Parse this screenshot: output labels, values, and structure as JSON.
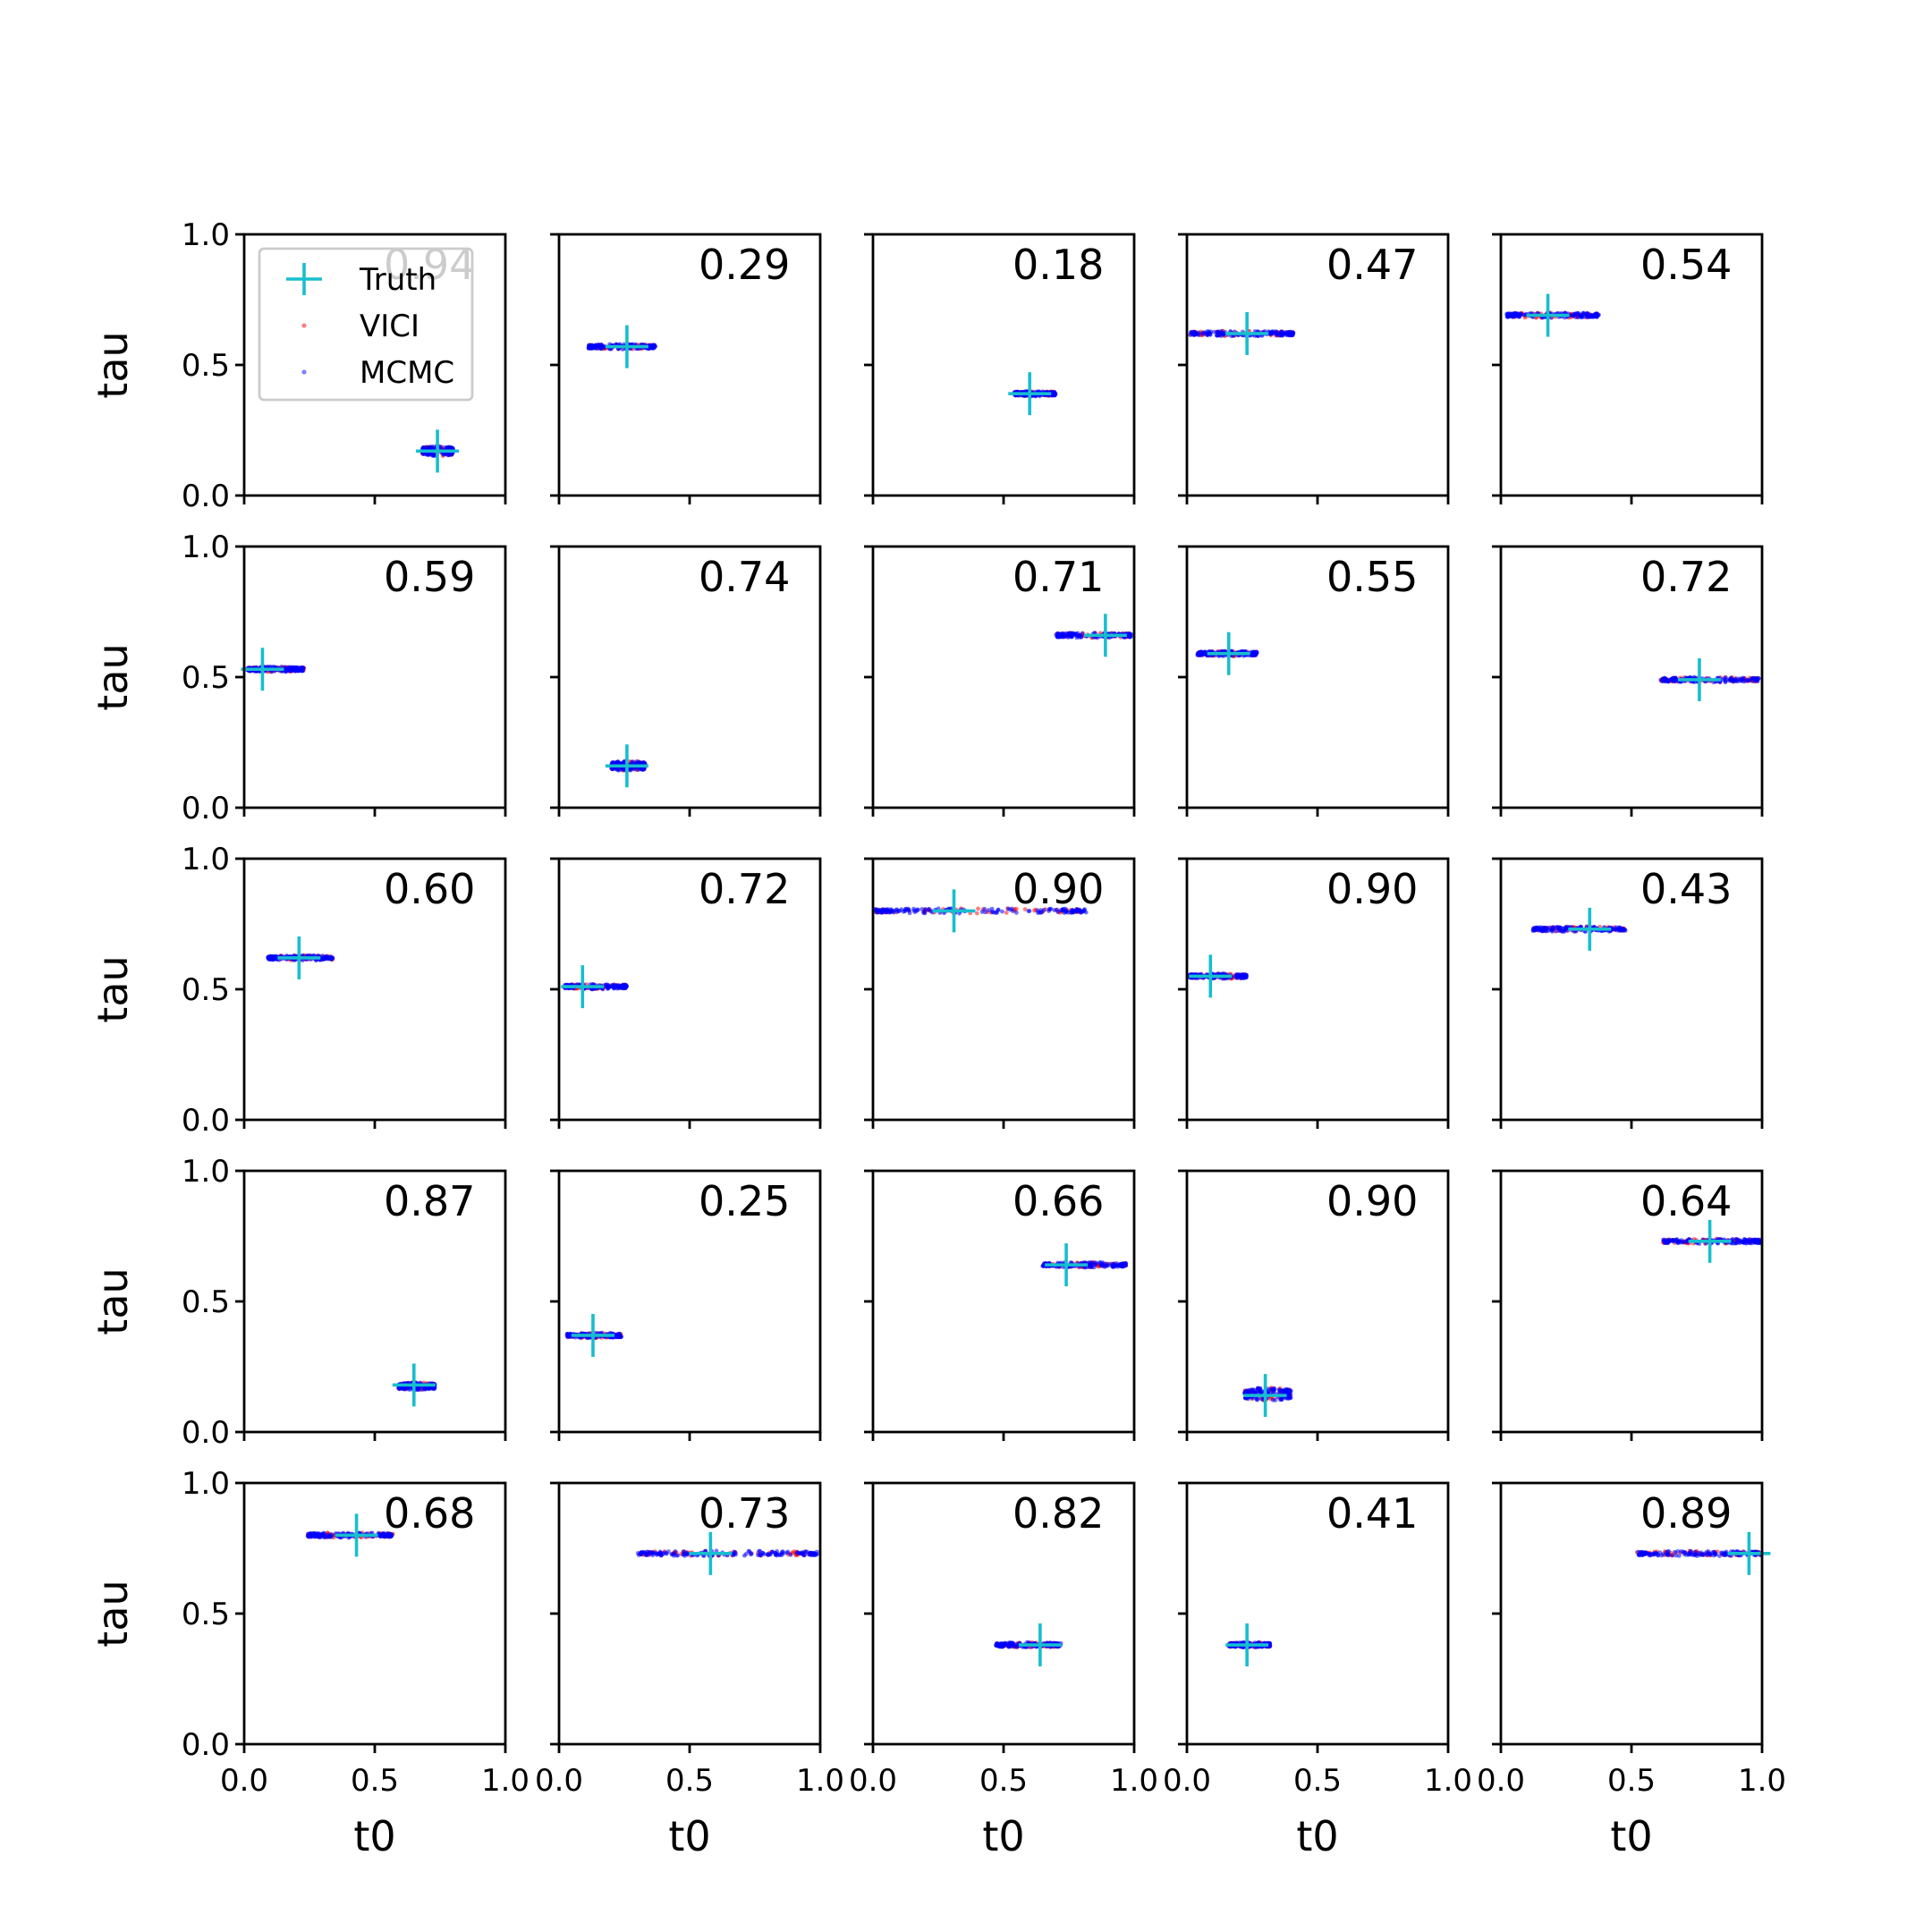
{
  "colors": {
    "truth": "#17becf",
    "vici": "#ff0000",
    "mcmc": "#0000ff",
    "axes": "#000000",
    "background": "#ffffff"
  },
  "chart_data": {
    "type": "scatter",
    "layout": "5x5 grid of subplots",
    "xlabel": "t0",
    "ylabel": "tau",
    "xlim": [
      0.0,
      1.0
    ],
    "ylim": [
      0.0,
      1.0
    ],
    "xticks": [
      "0.0",
      "0.5",
      "1.0"
    ],
    "yticks": [
      "0.0",
      "0.5",
      "1.0"
    ],
    "legend": {
      "placement": "upper-left of first panel",
      "entries": [
        {
          "label": "Truth",
          "marker": "plus"
        },
        {
          "label": "VICI",
          "marker": "dot"
        },
        {
          "label": "MCMC",
          "marker": "dot"
        }
      ]
    },
    "panels": [
      {
        "score": "0.94",
        "truth": [
          0.74,
          0.17
        ],
        "t0_range": [
          0.68,
          0.8
        ],
        "tau_range": [
          0.15,
          0.19
        ]
      },
      {
        "score": "0.29",
        "truth": [
          0.26,
          0.57
        ],
        "t0_range": [
          0.11,
          0.37
        ],
        "tau_range": [
          0.56,
          0.58
        ]
      },
      {
        "score": "0.18",
        "truth": [
          0.6,
          0.39
        ],
        "t0_range": [
          0.54,
          0.7
        ],
        "tau_range": [
          0.38,
          0.4
        ]
      },
      {
        "score": "0.47",
        "truth": [
          0.23,
          0.62
        ],
        "t0_range": [
          0.01,
          0.41
        ],
        "tau_range": [
          0.61,
          0.63
        ]
      },
      {
        "score": "0.54",
        "truth": [
          0.18,
          0.69
        ],
        "t0_range": [
          0.02,
          0.38
        ],
        "tau_range": [
          0.68,
          0.7
        ]
      },
      {
        "score": "0.59",
        "truth": [
          0.07,
          0.53
        ],
        "t0_range": [
          0.01,
          0.23
        ],
        "tau_range": [
          0.52,
          0.54
        ]
      },
      {
        "score": "0.74",
        "truth": [
          0.26,
          0.16
        ],
        "t0_range": [
          0.2,
          0.33
        ],
        "tau_range": [
          0.14,
          0.18
        ]
      },
      {
        "score": "0.71",
        "truth": [
          0.89,
          0.66
        ],
        "t0_range": [
          0.7,
          0.99
        ],
        "tau_range": [
          0.65,
          0.67
        ]
      },
      {
        "score": "0.55",
        "truth": [
          0.16,
          0.59
        ],
        "t0_range": [
          0.04,
          0.27
        ],
        "tau_range": [
          0.58,
          0.6
        ]
      },
      {
        "score": "0.72",
        "truth": [
          0.76,
          0.49
        ],
        "t0_range": [
          0.61,
          0.99
        ],
        "tau_range": [
          0.48,
          0.5
        ]
      },
      {
        "score": "0.60",
        "truth": [
          0.21,
          0.62
        ],
        "t0_range": [
          0.09,
          0.34
        ],
        "tau_range": [
          0.61,
          0.63
        ]
      },
      {
        "score": "0.72",
        "truth": [
          0.09,
          0.51
        ],
        "t0_range": [
          0.02,
          0.26
        ],
        "tau_range": [
          0.5,
          0.52
        ]
      },
      {
        "score": "0.90",
        "truth": [
          0.31,
          0.8
        ],
        "t0_range": [
          0.0,
          0.82
        ],
        "tau_range": [
          0.79,
          0.81
        ]
      },
      {
        "score": "0.90",
        "truth": [
          0.09,
          0.55
        ],
        "t0_range": [
          0.01,
          0.23
        ],
        "tau_range": [
          0.54,
          0.56
        ]
      },
      {
        "score": "0.43",
        "truth": [
          0.34,
          0.73
        ],
        "t0_range": [
          0.12,
          0.48
        ],
        "tau_range": [
          0.72,
          0.74
        ]
      },
      {
        "score": "0.87",
        "truth": [
          0.65,
          0.18
        ],
        "t0_range": [
          0.59,
          0.73
        ],
        "tau_range": [
          0.16,
          0.19
        ]
      },
      {
        "score": "0.25",
        "truth": [
          0.13,
          0.37
        ],
        "t0_range": [
          0.03,
          0.24
        ],
        "tau_range": [
          0.36,
          0.38
        ]
      },
      {
        "score": "0.66",
        "truth": [
          0.74,
          0.64
        ],
        "t0_range": [
          0.65,
          0.97
        ],
        "tau_range": [
          0.63,
          0.65
        ]
      },
      {
        "score": "0.90",
        "truth": [
          0.3,
          0.14
        ],
        "t0_range": [
          0.22,
          0.4
        ],
        "tau_range": [
          0.12,
          0.17
        ]
      },
      {
        "score": "0.64",
        "truth": [
          0.8,
          0.73
        ],
        "t0_range": [
          0.62,
          1.0
        ],
        "tau_range": [
          0.72,
          0.74
        ]
      },
      {
        "score": "0.68",
        "truth": [
          0.43,
          0.8
        ],
        "t0_range": [
          0.24,
          0.57
        ],
        "tau_range": [
          0.79,
          0.81
        ]
      },
      {
        "score": "0.73",
        "truth": [
          0.58,
          0.73
        ],
        "t0_range": [
          0.3,
          0.99
        ],
        "tau_range": [
          0.72,
          0.74
        ]
      },
      {
        "score": "0.82",
        "truth": [
          0.64,
          0.38
        ],
        "t0_range": [
          0.47,
          0.72
        ],
        "tau_range": [
          0.37,
          0.39
        ]
      },
      {
        "score": "0.41",
        "truth": [
          0.23,
          0.38
        ],
        "t0_range": [
          0.16,
          0.32
        ],
        "tau_range": [
          0.37,
          0.39
        ]
      },
      {
        "score": "0.89",
        "truth": [
          0.95,
          0.73
        ],
        "t0_range": [
          0.52,
          1.0
        ],
        "tau_range": [
          0.72,
          0.74
        ]
      }
    ]
  }
}
